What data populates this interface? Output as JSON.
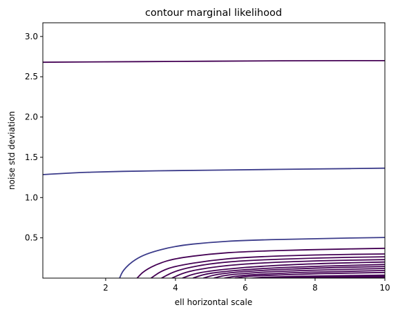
{
  "chart_data": {
    "type": "contour",
    "title": "contour marginal likelihood",
    "xlabel": "ell horizontal scale",
    "ylabel": "noise std deviation",
    "xlim": [
      0.2,
      10
    ],
    "ylim": [
      0.0,
      3.17
    ],
    "xticks": [
      2,
      4,
      6,
      8,
      10
    ],
    "xtick_labels": [
      "2",
      "4",
      "6",
      "8",
      "10"
    ],
    "yticks": [
      0.5,
      1.0,
      1.5,
      2.0,
      2.5,
      3.0
    ],
    "ytick_labels": [
      "0.5",
      "1.0",
      "1.5",
      "2.0",
      "2.5",
      "3.0"
    ],
    "grid": false,
    "legend": "none",
    "colors": {
      "dark_level": "#440154",
      "mid_level": "#3b3b8a"
    },
    "contours": [
      {
        "level_index": 0,
        "color": "#440154",
        "x": [
          0.2,
          2,
          4,
          6,
          8,
          10
        ],
        "y": [
          2.68,
          2.685,
          2.69,
          2.695,
          2.7,
          2.7
        ]
      },
      {
        "level_index": 1,
        "color": "#3b3b8a",
        "x": [
          0.2,
          0.6,
          1.2,
          2,
          3,
          4,
          6,
          8,
          10
        ],
        "y": [
          1.285,
          1.295,
          1.31,
          1.32,
          1.33,
          1.335,
          1.345,
          1.355,
          1.365
        ]
      },
      {
        "level_index": 2,
        "color": "#3b3b8a",
        "x": [
          2.4,
          2.5,
          2.8,
          3.2,
          4,
          5,
          6,
          8,
          10
        ],
        "y": [
          0.0,
          0.1,
          0.22,
          0.31,
          0.4,
          0.445,
          0.47,
          0.49,
          0.505
        ]
      },
      {
        "level_index": 3,
        "color": "#440154",
        "x": [
          2.9,
          3.1,
          3.5,
          4,
          5,
          6,
          8,
          10
        ],
        "y": [
          0.0,
          0.09,
          0.18,
          0.245,
          0.3,
          0.33,
          0.355,
          0.37
        ]
      },
      {
        "level_index": 4,
        "color": "#440154",
        "x": [
          3.3,
          3.6,
          4,
          5,
          6,
          8,
          10
        ],
        "y": [
          0.0,
          0.09,
          0.15,
          0.22,
          0.26,
          0.29,
          0.3
        ]
      },
      {
        "level_index": 5,
        "color": "#440154",
        "x": [
          3.6,
          3.9,
          4.3,
          5,
          6,
          8,
          10
        ],
        "y": [
          0.0,
          0.07,
          0.125,
          0.18,
          0.22,
          0.25,
          0.265
        ]
      },
      {
        "level_index": 6,
        "color": "#440154",
        "x": [
          3.9,
          4.2,
          4.6,
          5.5,
          6.5,
          8,
          10
        ],
        "y": [
          0.0,
          0.06,
          0.105,
          0.16,
          0.19,
          0.215,
          0.23
        ]
      },
      {
        "level_index": 7,
        "color": "#440154",
        "x": [
          4.2,
          4.5,
          5,
          6,
          7,
          8,
          10
        ],
        "y": [
          0.0,
          0.05,
          0.09,
          0.135,
          0.16,
          0.18,
          0.2
        ]
      },
      {
        "level_index": 8,
        "color": "#440154",
        "x": [
          4.5,
          4.8,
          5.3,
          6.3,
          7.5,
          10
        ],
        "y": [
          0.0,
          0.045,
          0.08,
          0.115,
          0.14,
          0.17
        ]
      },
      {
        "level_index": 9,
        "color": "#440154",
        "x": [
          4.8,
          5.1,
          5.6,
          6.6,
          8,
          10
        ],
        "y": [
          0.0,
          0.04,
          0.07,
          0.1,
          0.125,
          0.145
        ]
      },
      {
        "level_index": 10,
        "color": "#440154",
        "x": [
          5.1,
          5.4,
          6,
          7,
          8.5,
          10
        ],
        "y": [
          0.0,
          0.035,
          0.06,
          0.085,
          0.105,
          0.12
        ]
      },
      {
        "level_index": 11,
        "color": "#440154",
        "x": [
          5.4,
          5.8,
          6.5,
          7.5,
          9,
          10
        ],
        "y": [
          0.0,
          0.03,
          0.05,
          0.07,
          0.085,
          0.095
        ]
      },
      {
        "level_index": 12,
        "color": "#440154",
        "x": [
          5.7,
          6.1,
          7,
          8,
          10
        ],
        "y": [
          0.0,
          0.025,
          0.04,
          0.055,
          0.07
        ]
      }
    ],
    "filled_region": {
      "color": "#440154",
      "x": [
        6.0,
        6.5,
        7.5,
        9,
        10
      ],
      "y": [
        0.0,
        0.018,
        0.03,
        0.04,
        0.045
      ]
    }
  }
}
